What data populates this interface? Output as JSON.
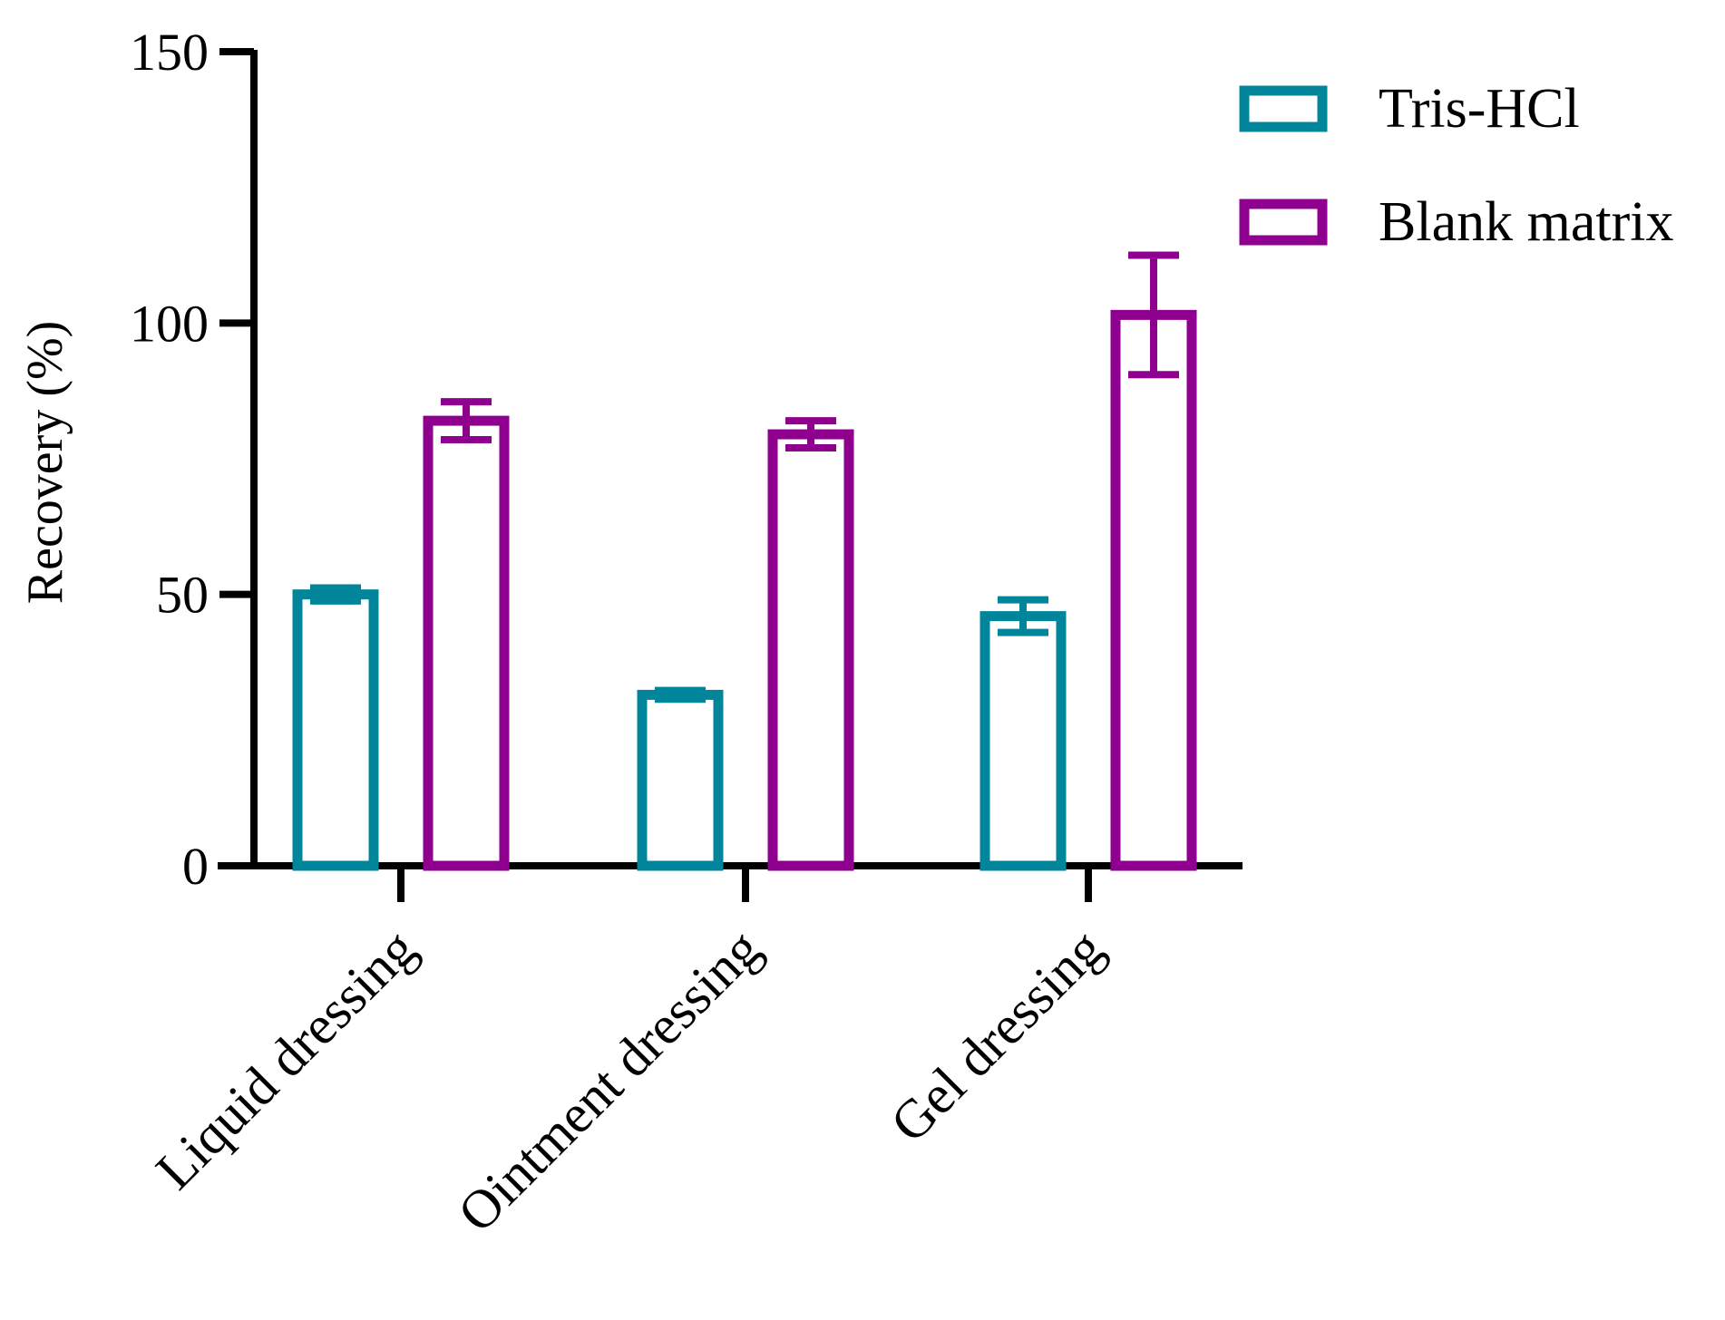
{
  "chart_data": {
    "type": "bar",
    "title": "",
    "xlabel": "",
    "ylabel": "Recovery (%)",
    "ylim": [
      0,
      150
    ],
    "yticks": [
      0,
      50,
      100,
      150
    ],
    "grid": false,
    "legend_position": "top-right",
    "categories": [
      "Liquid dressing",
      "Ointment dressing",
      "Gel dressing"
    ],
    "series": [
      {
        "name": "Tris-HCl",
        "color": "#00859b",
        "values": [
          50,
          31.5,
          46
        ],
        "errors": [
          1.2,
          0.8,
          3
        ]
      },
      {
        "name": "Blank matrix",
        "color": "#8f008f",
        "values": [
          82,
          79.5,
          101.5
        ],
        "errors": [
          3.5,
          2.5,
          11
        ]
      }
    ]
  }
}
